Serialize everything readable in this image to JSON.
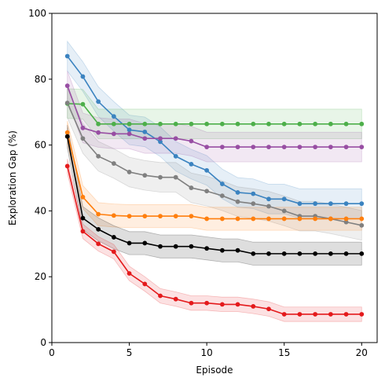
{
  "chart_data": {
    "type": "line",
    "title": "",
    "xlabel": "Episode",
    "ylabel": "Exploration Gap (%)",
    "xlim": [
      0,
      21
    ],
    "ylim": [
      0,
      100
    ],
    "xticks": [
      0,
      5,
      10,
      15,
      20
    ],
    "yticks": [
      0,
      20,
      40,
      60,
      80,
      100
    ],
    "grid": false,
    "legend": "none",
    "x": [
      1,
      2,
      3,
      4,
      5,
      6,
      7,
      8,
      9,
      10,
      11,
      12,
      13,
      14,
      15,
      16,
      17,
      18,
      19,
      20
    ],
    "series": [
      {
        "color": "#3b83c0",
        "values": [
          87.0,
          80.8,
          73.2,
          68.7,
          64.6,
          64.0,
          61.0,
          56.6,
          54.2,
          52.3,
          48.2,
          45.6,
          45.2,
          43.6,
          43.6,
          42.2,
          42.2,
          42.2,
          42.2,
          42.2
        ],
        "band": 4.5
      },
      {
        "color": "#4daf4a",
        "values": [
          72.6,
          72.4,
          66.4,
          66.4,
          66.4,
          66.4,
          66.4,
          66.4,
          66.4,
          66.4,
          66.4,
          66.4,
          66.4,
          66.4,
          66.4,
          66.4,
          66.4,
          66.4,
          66.4,
          66.4
        ],
        "band": 4.5
      },
      {
        "color": "#984ea3",
        "values": [
          78.0,
          65.2,
          63.8,
          63.4,
          63.4,
          62.0,
          62.0,
          62.0,
          61.2,
          59.4,
          59.4,
          59.4,
          59.4,
          59.4,
          59.4,
          59.4,
          59.4,
          59.4,
          59.4,
          59.4
        ],
        "band": 4.5
      },
      {
        "color": "#808080",
        "values": [
          72.8,
          62.0,
          56.6,
          54.4,
          51.8,
          50.8,
          50.2,
          50.2,
          47.0,
          46.0,
          44.6,
          42.8,
          42.2,
          41.4,
          40.0,
          38.4,
          38.4,
          37.6,
          36.6,
          35.6
        ],
        "band": 4.5
      },
      {
        "color": "#ff7f0e",
        "values": [
          63.8,
          44.2,
          39.0,
          38.6,
          38.4,
          38.4,
          38.4,
          38.4,
          38.4,
          37.6,
          37.6,
          37.6,
          37.6,
          37.6,
          37.6,
          37.6,
          37.6,
          37.6,
          37.6,
          37.6
        ],
        "band": 3.5
      },
      {
        "color": "#000000",
        "values": [
          62.6,
          37.8,
          34.4,
          32.0,
          30.2,
          30.2,
          29.2,
          29.2,
          29.2,
          28.6,
          28.0,
          28.0,
          27.0,
          27.0,
          27.0,
          27.0,
          27.0,
          27.0,
          27.0,
          27.0
        ],
        "band": 3.5
      },
      {
        "color": "#e41a1c",
        "values": [
          53.6,
          33.8,
          30.0,
          27.6,
          21.0,
          17.8,
          14.2,
          13.2,
          12.0,
          12.0,
          11.6,
          11.6,
          11.0,
          10.2,
          8.6,
          8.6,
          8.6,
          8.6,
          8.6,
          8.6
        ],
        "band": 2.2
      }
    ]
  }
}
